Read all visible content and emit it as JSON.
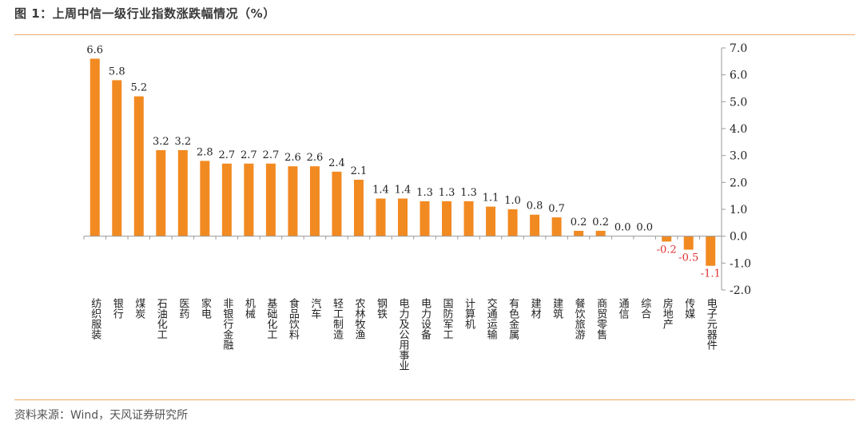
{
  "header": {
    "title": "图 1：上周中信一级行业指数涨跌幅情况（%）"
  },
  "footer": {
    "source": "资料来源：Wind，天风证券研究所"
  },
  "chart_data": {
    "type": "bar",
    "categories": [
      "纺织服装",
      "银行",
      "煤炭",
      "石油化工",
      "医药",
      "家电",
      "非银行金融",
      "机械",
      "基础化工",
      "食品饮料",
      "汽车",
      "轻工制造",
      "农林牧渔",
      "钢铁",
      "电力及公用事业",
      "电力设备",
      "国防军工",
      "计算机",
      "交通运输",
      "有色金属",
      "建材",
      "建筑",
      "餐饮旅游",
      "商贸零售",
      "通信",
      "综合",
      "房地产",
      "传媒",
      "电子元器件"
    ],
    "values": [
      6.6,
      5.8,
      5.2,
      3.2,
      3.2,
      2.8,
      2.7,
      2.7,
      2.7,
      2.6,
      2.6,
      2.4,
      2.1,
      1.4,
      1.4,
      1.3,
      1.3,
      1.3,
      1.1,
      1.0,
      0.8,
      0.7,
      0.2,
      0.2,
      0.0,
      0.0,
      -0.2,
      -0.5,
      -1.1
    ],
    "yticks": [
      "7.0",
      "6.0",
      "5.0",
      "4.0",
      "3.0",
      "2.0",
      "1.0",
      "0.0",
      "-1.0",
      "-2.0"
    ],
    "ylim": [
      -2,
      7
    ],
    "y_axis_side": "right",
    "title": "",
    "xlabel": "",
    "ylabel": "",
    "colors": {
      "bar": "#f28a22",
      "positive_label": "#222222",
      "negative_label": "#e03030",
      "axis": "#999999"
    }
  }
}
